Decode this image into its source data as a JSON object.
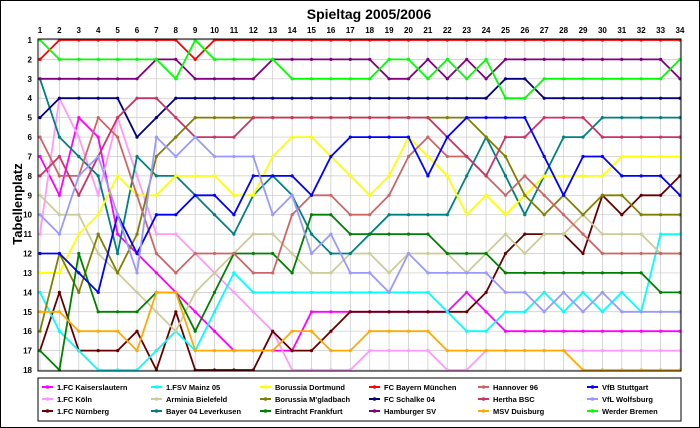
{
  "chart_data": {
    "type": "line",
    "title": "Spieltag 2005/2006",
    "xlabel": "",
    "ylabel": "Tabellenplatz",
    "x": [
      1,
      2,
      3,
      4,
      5,
      6,
      7,
      8,
      9,
      10,
      11,
      12,
      13,
      14,
      15,
      16,
      17,
      18,
      19,
      20,
      21,
      22,
      23,
      24,
      25,
      26,
      27,
      28,
      29,
      30,
      31,
      32,
      33,
      34
    ],
    "y_ticks": [
      1,
      2,
      3,
      4,
      5,
      6,
      7,
      8,
      9,
      10,
      11,
      12,
      13,
      14,
      15,
      16,
      17,
      18
    ],
    "ylim": [
      1,
      18
    ],
    "y_inverted": true,
    "grid": true,
    "legend_position": "bottom",
    "series": [
      {
        "name": "1.FC Kaiserslautern",
        "color": "#ff00ff",
        "values": [
          7,
          9,
          5,
          6,
          11,
          12,
          13,
          14,
          15,
          16,
          17,
          17,
          17,
          17,
          15,
          15,
          15,
          15,
          15,
          15,
          15,
          15,
          14,
          15,
          16,
          16,
          16,
          16,
          16,
          16,
          16,
          16,
          16,
          16
        ]
      },
      {
        "name": "1.FC Köln",
        "color": "#ff99ff",
        "values": [
          11,
          4,
          6,
          9,
          5,
          8,
          11,
          11,
          12,
          13,
          14,
          15,
          16,
          18,
          18,
          18,
          18,
          17,
          17,
          17,
          17,
          18,
          18,
          17,
          17,
          17,
          17,
          17,
          17,
          17,
          17,
          17,
          17,
          17
        ]
      },
      {
        "name": "1.FC Nürnberg",
        "color": "#660000",
        "values": [
          17,
          14,
          17,
          17,
          17,
          16,
          18,
          15,
          18,
          18,
          18,
          18,
          16,
          17,
          17,
          16,
          15,
          15,
          15,
          15,
          15,
          15,
          15,
          14,
          12,
          11,
          11,
          11,
          12,
          9,
          10,
          9,
          9,
          8
        ]
      },
      {
        "name": "1.FSV Mainz 05",
        "color": "#00ffff",
        "values": [
          14,
          16,
          17,
          18,
          18,
          18,
          17,
          16,
          17,
          15,
          13,
          14,
          14,
          14,
          14,
          14,
          14,
          14,
          14,
          14,
          14,
          15,
          16,
          16,
          15,
          15,
          14,
          15,
          14,
          15,
          14,
          15,
          11,
          11
        ]
      },
      {
        "name": "Arminia Bielefeld",
        "color": "#cccc99",
        "values": [
          9,
          10,
          10,
          12,
          13,
          14,
          15,
          16,
          14,
          13,
          12,
          11,
          11,
          12,
          13,
          13,
          12,
          12,
          13,
          12,
          12,
          12,
          13,
          12,
          11,
          12,
          11,
          11,
          10,
          11,
          11,
          11,
          12,
          12
        ]
      },
      {
        "name": "Bayer 04 Leverkusen",
        "color": "#008080",
        "values": [
          3,
          6,
          7,
          8,
          12,
          7,
          8,
          8,
          9,
          10,
          11,
          9,
          8,
          9,
          11,
          12,
          12,
          11,
          10,
          10,
          10,
          10,
          8,
          6,
          8,
          10,
          8,
          6,
          6,
          5,
          5,
          5,
          5,
          5
        ]
      },
      {
        "name": "Borussia Dortmund",
        "color": "#ffff00",
        "values": [
          13,
          13,
          11,
          10,
          8,
          9,
          9,
          8,
          8,
          8,
          9,
          9,
          7,
          6,
          6,
          7,
          8,
          9,
          8,
          6,
          7,
          8,
          10,
          9,
          10,
          9,
          8,
          8,
          8,
          8,
          7,
          7,
          7,
          7
        ]
      },
      {
        "name": "Borussia M'gladbach",
        "color": "#808000",
        "values": [
          16,
          12,
          14,
          11,
          13,
          11,
          7,
          6,
          5,
          5,
          5,
          5,
          5,
          5,
          5,
          5,
          5,
          5,
          5,
          5,
          5,
          5,
          5,
          6,
          7,
          9,
          10,
          9,
          10,
          9,
          9,
          10,
          10,
          10
        ]
      },
      {
        "name": "Eintracht Frankfurt",
        "color": "#008000",
        "values": [
          17,
          18,
          12,
          15,
          15,
          15,
          14,
          14,
          16,
          14,
          12,
          12,
          12,
          13,
          10,
          10,
          11,
          11,
          11,
          11,
          11,
          12,
          12,
          12,
          13,
          13,
          13,
          13,
          13,
          13,
          13,
          13,
          14,
          14
        ]
      },
      {
        "name": "FC Bayern München",
        "color": "#ff0000",
        "values": [
          2,
          1,
          1,
          1,
          1,
          1,
          1,
          1,
          2,
          1,
          1,
          1,
          1,
          1,
          1,
          1,
          1,
          1,
          1,
          1,
          1,
          1,
          1,
          1,
          1,
          1,
          1,
          1,
          1,
          1,
          1,
          1,
          1,
          1
        ]
      },
      {
        "name": "FC Schalke 04",
        "color": "#000080",
        "values": [
          5,
          4,
          4,
          4,
          4,
          6,
          5,
          4,
          4,
          4,
          4,
          4,
          4,
          4,
          4,
          4,
          4,
          4,
          4,
          4,
          4,
          4,
          4,
          4,
          3,
          3,
          4,
          4,
          4,
          4,
          4,
          4,
          4,
          4
        ]
      },
      {
        "name": "Hamburger SV",
        "color": "#800080",
        "values": [
          3,
          3,
          3,
          3,
          3,
          3,
          2,
          2,
          3,
          3,
          3,
          3,
          2,
          2,
          2,
          2,
          2,
          2,
          3,
          3,
          2,
          3,
          2,
          3,
          2,
          2,
          2,
          2,
          2,
          2,
          2,
          2,
          2,
          3
        ]
      },
      {
        "name": "Hannover 96",
        "color": "#cc6666",
        "values": [
          6,
          8,
          8,
          5,
          6,
          9,
          12,
          13,
          12,
          12,
          12,
          13,
          13,
          10,
          9,
          9,
          10,
          10,
          9,
          7,
          6,
          7,
          7,
          8,
          9,
          8,
          9,
          10,
          11,
          12,
          12,
          12,
          12,
          12
        ]
      },
      {
        "name": "Hertha BSC",
        "color": "#cc3366",
        "values": [
          8,
          7,
          9,
          7,
          5,
          4,
          4,
          5,
          6,
          6,
          6,
          5,
          5,
          5,
          5,
          5,
          5,
          5,
          5,
          5,
          5,
          6,
          7,
          8,
          6,
          6,
          5,
          5,
          5,
          6,
          6,
          6,
          6,
          6
        ]
      },
      {
        "name": "MSV Duisburg",
        "color": "#ffaa00",
        "values": [
          15,
          15,
          16,
          16,
          16,
          17,
          14,
          14,
          17,
          17,
          17,
          17,
          17,
          16,
          16,
          17,
          17,
          16,
          16,
          16,
          16,
          17,
          17,
          17,
          17,
          17,
          17,
          17,
          18,
          18,
          18,
          18,
          18,
          18
        ]
      },
      {
        "name": "VfB Stuttgart",
        "color": "#0000ff",
        "values": [
          12,
          12,
          13,
          14,
          10,
          12,
          10,
          10,
          9,
          9,
          10,
          8,
          8,
          8,
          9,
          7,
          6,
          6,
          6,
          6,
          8,
          6,
          5,
          5,
          5,
          5,
          7,
          9,
          7,
          7,
          8,
          8,
          8,
          9
        ]
      },
      {
        "name": "VfL Wolfsburg",
        "color": "#9999ff",
        "values": [
          10,
          11,
          8,
          7,
          10,
          13,
          6,
          7,
          6,
          7,
          7,
          7,
          10,
          9,
          12,
          11,
          13,
          13,
          14,
          12,
          13,
          13,
          13,
          13,
          14,
          14,
          15,
          14,
          15,
          14,
          15,
          15,
          15,
          15
        ]
      },
      {
        "name": "Werder Bremen",
        "color": "#00ff00",
        "values": [
          1,
          2,
          2,
          2,
          2,
          2,
          2,
          3,
          1,
          2,
          2,
          2,
          2,
          3,
          3,
          3,
          3,
          3,
          2,
          2,
          3,
          2,
          3,
          2,
          4,
          4,
          3,
          3,
          3,
          3,
          3,
          3,
          3,
          2
        ]
      }
    ]
  }
}
